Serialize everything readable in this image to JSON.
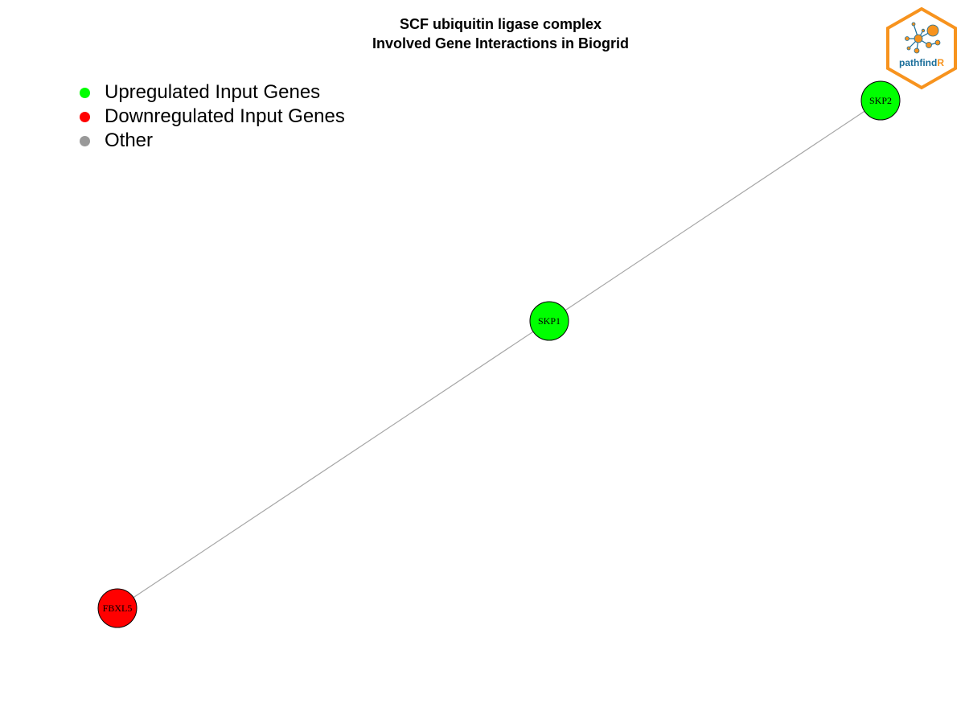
{
  "title": {
    "line1": "SCF ubiquitin ligase complex",
    "line2": "Involved Gene Interactions in Biogrid"
  },
  "legend": {
    "items": [
      {
        "label": "Upregulated Input Genes",
        "color": "#00ff00"
      },
      {
        "label": "Downregulated Input Genes",
        "color": "#ff0000"
      },
      {
        "label": "Other",
        "color": "#999999"
      }
    ]
  },
  "logo": {
    "text_main": "pathfind",
    "text_accent": "R",
    "border_color": "#f7931e",
    "text_color": "#1a6e9a"
  },
  "network": {
    "edge_color": "#a6a6a6",
    "nodes": [
      {
        "id": "SKP2",
        "label": "SKP2",
        "color": "#00ff00"
      },
      {
        "id": "SKP1",
        "label": "SKP1",
        "color": "#00ff00"
      },
      {
        "id": "FBXL5",
        "label": "FBXL5",
        "color": "#ff0000"
      }
    ],
    "edges": [
      {
        "source": "SKP2",
        "target": "SKP1"
      },
      {
        "source": "SKP1",
        "target": "FBXL5"
      }
    ]
  }
}
